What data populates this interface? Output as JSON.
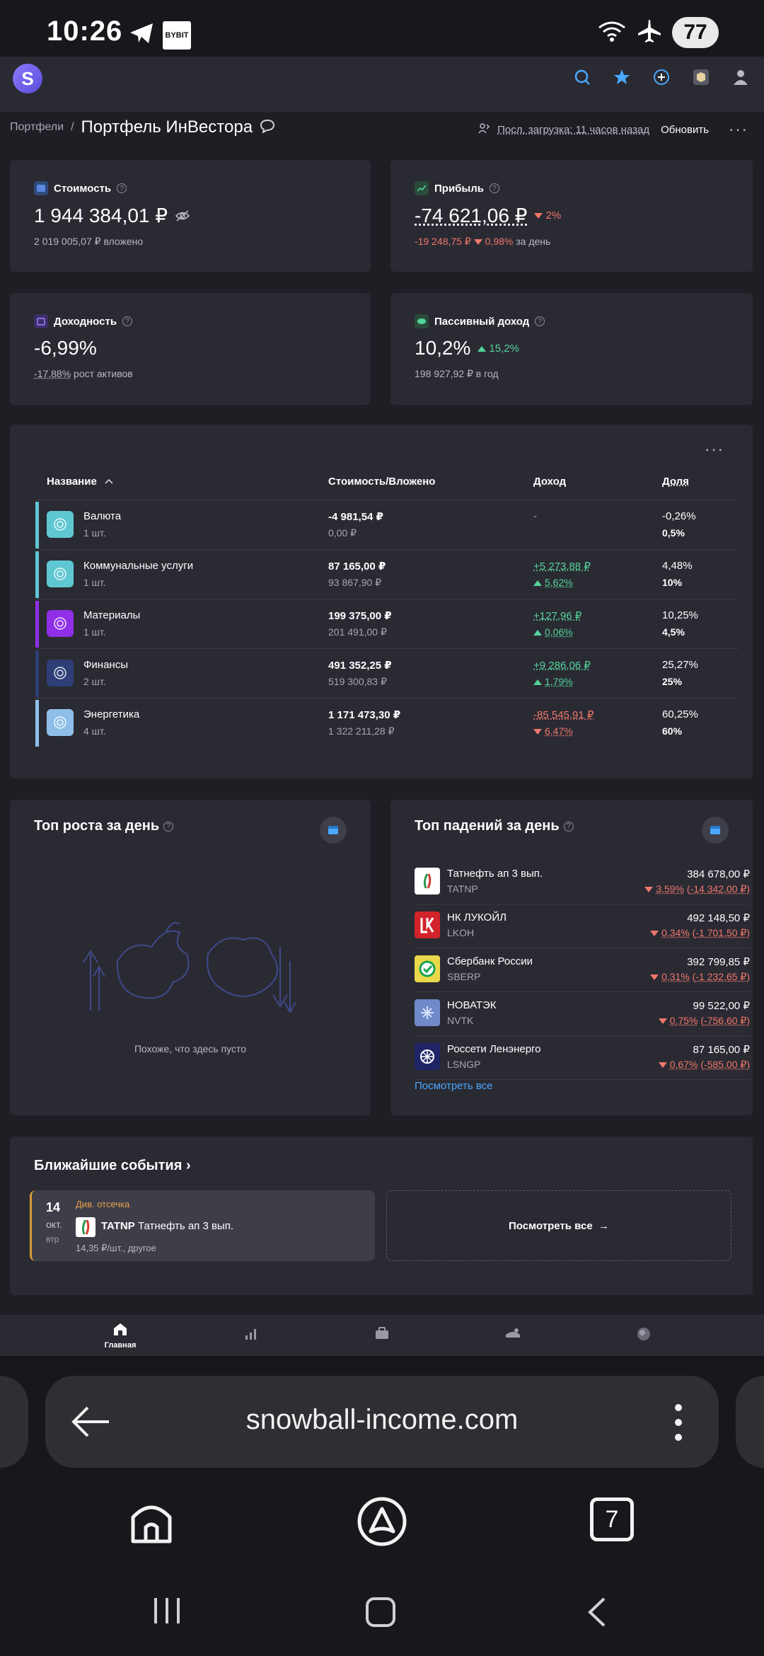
{
  "status_bar": {
    "time": "10:26",
    "bybit_label": "BYBIT",
    "battery": "77",
    "icons": [
      "telegram-icon",
      "wifi-icon",
      "airplane-icon"
    ]
  },
  "app": {
    "logo_letter": "S",
    "accent": "#7b6cf6"
  },
  "breadcrumb": {
    "root": "Портфели",
    "separator": "/",
    "title": "Портфель ИнВестора",
    "last_load": "Посл. загрузка: 11 часов назад",
    "refresh": "Обновить",
    "more": "···"
  },
  "summary": {
    "value": {
      "title": "Стоимость",
      "amount": "1 944 384,01 ₽",
      "invested": "2 019 005,07 ₽",
      "invested_label": "вложено"
    },
    "profit": {
      "title": "Прибыль",
      "amount": "-74 621,06 ₽",
      "pct": "2%",
      "day_amount": "-19 248,75 ₽",
      "day_pct": "0,98%",
      "day_label": "за день"
    },
    "yield": {
      "title": "Доходность",
      "amount": "-6,99%",
      "growth": "-17,88%",
      "growth_label": "рост активов"
    },
    "passive": {
      "title": "Пассивный доход",
      "amount": "10,2%",
      "pct": "15,2%",
      "per_year": "198 927,92 ₽ в год"
    }
  },
  "table": {
    "more": "···",
    "columns": {
      "name": "Название",
      "value": "Стоимость/Вложено",
      "income": "Доход",
      "share": "Доля"
    },
    "rows": [
      {
        "name": "Валюта",
        "count": "1 шт.",
        "value": "-4 981,54 ₽",
        "invested": "0,00 ₽",
        "income": "-",
        "income_pct": "",
        "share1": "-0,26%",
        "share2": "0,5%",
        "color": "#5fc7d2"
      },
      {
        "name": "Коммунальные услуги",
        "count": "1 шт.",
        "value": "87 165,00 ₽",
        "invested": "93 867,90 ₽",
        "income": "+5 273,88 ₽",
        "income_pct": "5,62%",
        "share1": "4,48%",
        "share2": "10%",
        "color": "#5fc7d2"
      },
      {
        "name": "Материалы",
        "count": "1 шт.",
        "value": "199 375,00 ₽",
        "invested": "201 491,00 ₽",
        "income": "+127,96 ₽",
        "income_pct": "0,06%",
        "share1": "10,25%",
        "share2": "4,5%",
        "color": "#8f2fe6"
      },
      {
        "name": "Финансы",
        "count": "2 шт.",
        "value": "491 352,25 ₽",
        "invested": "519 300,83 ₽",
        "income": "+9 286,06 ₽",
        "income_pct": "1,79%",
        "share1": "25,27%",
        "share2": "25%",
        "color": "#2d3f76"
      },
      {
        "name": "Энергетика",
        "count": "4 шт.",
        "value": "1 171 473,30 ₽",
        "invested": "1 322 211,28 ₽",
        "income": "-85 545,91 ₽",
        "income_pct": "6,47%",
        "share1": "60,25%",
        "share2": "60%",
        "color": "#8fbfe8"
      }
    ]
  },
  "top_gainers": {
    "title": "Топ роста за день",
    "empty": "Похоже, что здесь пусто"
  },
  "top_losers": {
    "title": "Топ падений за день",
    "items": [
      {
        "name": "Татнефть ап 3 вып.",
        "ticker": "TATNP",
        "price": "384 678,00 ₽",
        "pct": "3,59%",
        "change": "-14 342,00 ₽"
      },
      {
        "name": "НК ЛУКОЙЛ",
        "ticker": "LKOH",
        "price": "492 148,50 ₽",
        "pct": "0,34%",
        "change": "-1 701,50 ₽"
      },
      {
        "name": "Сбербанк России",
        "ticker": "SBERP",
        "price": "392 799,85 ₽",
        "pct": "0,31%",
        "change": "-1 232,65 ₽"
      },
      {
        "name": "НОВАТЭК",
        "ticker": "NVTK",
        "price": "99 522,00 ₽",
        "pct": "0,75%",
        "change": "-756,60 ₽"
      },
      {
        "name": "Россети Ленэнерго",
        "ticker": "LSNGP",
        "price": "87 165,00 ₽",
        "pct": "0,67%",
        "change": "-585,00 ₽"
      }
    ],
    "see_all": "Посмотреть все"
  },
  "events": {
    "title": "Ближайшие события",
    "chevron": "›",
    "item": {
      "day": "14",
      "month": "окт.",
      "weekday": "втр",
      "tag": "Див. отсечка",
      "ticker": "TATNP",
      "name": "Татнефть ап 3 вып.",
      "sub": "14,35 ₽/шт., другое"
    },
    "see_all": "Посмотреть все",
    "arrow": "→"
  },
  "bottom_nav": {
    "home": "Главная"
  },
  "browser": {
    "url": "snowball-income.com",
    "tabs_count": "7"
  }
}
